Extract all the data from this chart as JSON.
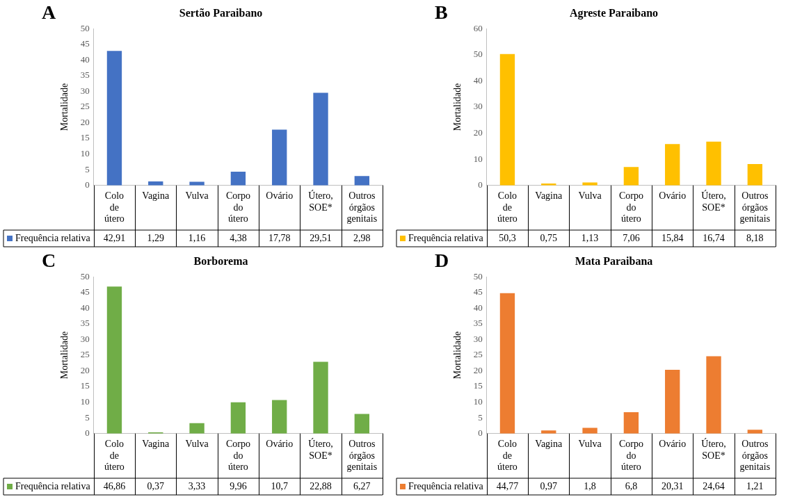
{
  "chart_data": [
    {
      "type": "bar",
      "title": "Sertão Paraibano",
      "annotations": [
        "A"
      ],
      "ylabel": "Mortalidade",
      "categories": [
        "Colo de útero",
        "Vagina",
        "Vulva",
        "Corpo do útero",
        "Ovário",
        "Útero, SOE*",
        "Outros órgãos genitais"
      ],
      "series": [
        {
          "name": "Frequência relativa",
          "color": "#4472c4",
          "values": [
            42.91,
            1.29,
            1.16,
            4.38,
            17.78,
            29.51,
            2.98
          ],
          "value_labels": [
            "42,91",
            "1,29",
            "1,16",
            "4,38",
            "17,78",
            "29,51",
            "2,98"
          ]
        }
      ],
      "ylim": [
        0,
        50
      ],
      "yticks": [
        0,
        5,
        10,
        15,
        20,
        25,
        30,
        35,
        40,
        45,
        50
      ],
      "grid": false,
      "legend": "bottom"
    },
    {
      "type": "bar",
      "title": "Agreste Paraibano",
      "annotations": [
        "B"
      ],
      "ylabel": "Mortalidade",
      "categories": [
        "Colo de útero",
        "Vagina",
        "Vulva",
        "Corpo do útero",
        "Ovário",
        "Útero, SOE*",
        "Outros órgãos genitais"
      ],
      "series": [
        {
          "name": "Frequência relativa",
          "color": "#ffc000",
          "values": [
            50.3,
            0.75,
            1.13,
            7.06,
            15.84,
            16.74,
            8.18
          ],
          "value_labels": [
            "50,3",
            "0,75",
            "1,13",
            "7,06",
            "15,84",
            "16,74",
            "8,18"
          ]
        }
      ],
      "ylim": [
        0,
        60
      ],
      "yticks": [
        0,
        10,
        20,
        30,
        40,
        50,
        60
      ],
      "grid": false,
      "legend": "bottom"
    },
    {
      "type": "bar",
      "title": "Borborema",
      "annotations": [
        "C"
      ],
      "ylabel": "Mortalidade",
      "categories": [
        "Colo de útero",
        "Vagina",
        "Vulva",
        "Corpo do útero",
        "Ovário",
        "Útero, SOE*",
        "Outros órgãos genitais"
      ],
      "series": [
        {
          "name": "Frequência relativa",
          "color": "#70ad47",
          "values": [
            46.86,
            0.37,
            3.33,
            9.96,
            10.7,
            22.88,
            6.27
          ],
          "value_labels": [
            "46,86",
            "0,37",
            "3,33",
            "9,96",
            "10,7",
            "22,88",
            "6,27"
          ]
        }
      ],
      "ylim": [
        0,
        50
      ],
      "yticks": [
        0,
        5,
        10,
        15,
        20,
        25,
        30,
        35,
        40,
        45,
        50
      ],
      "grid": false,
      "legend": "bottom"
    },
    {
      "type": "bar",
      "title": "Mata Paraibana",
      "annotations": [
        "D"
      ],
      "ylabel": "Mortalidade",
      "categories": [
        "Colo de útero",
        "Vagina",
        "Vulva",
        "Corpo do útero",
        "Ovário",
        "Útero, SOE*",
        "Outros órgãos genitais"
      ],
      "series": [
        {
          "name": "Frequência relativa",
          "color": "#ed7d31",
          "values": [
            44.77,
            0.97,
            1.8,
            6.8,
            20.31,
            24.64,
            1.21
          ],
          "value_labels": [
            "44,77",
            "0,97",
            "1,8",
            "6,8",
            "20,31",
            "24,64",
            "1,21"
          ]
        }
      ],
      "ylim": [
        0,
        50
      ],
      "yticks": [
        0,
        5,
        10,
        15,
        20,
        25,
        30,
        35,
        40,
        45,
        50
      ],
      "grid": false,
      "legend": "bottom"
    }
  ]
}
